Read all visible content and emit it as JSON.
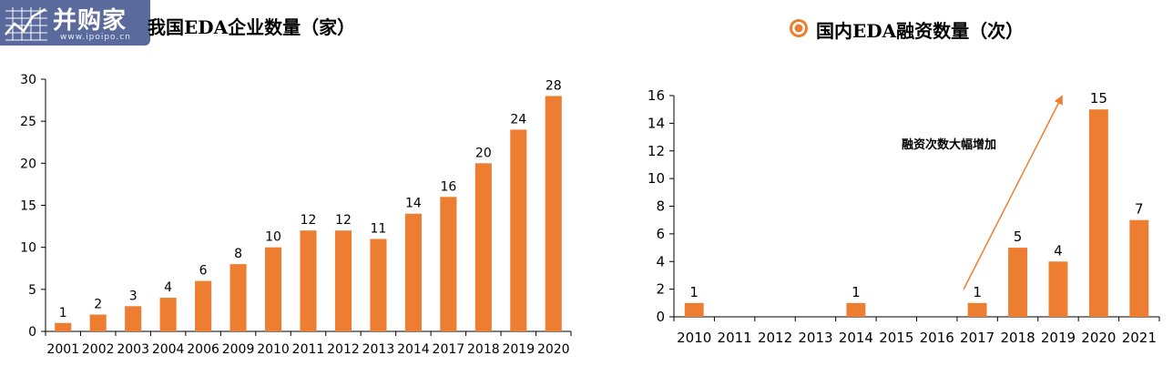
{
  "logo": {
    "main_text": "并购家",
    "sub_text": "www.ipoipo.cn"
  },
  "left_title": "我国EDA企业数量（家）",
  "right_title": "国内EDA融资数量（次）",
  "annotation": "融资次数大幅增加",
  "colors": {
    "bar": "#ED7D31",
    "logo_bg": "#5a6a9c",
    "arrow": "#ED7D31"
  },
  "icons": {
    "logo": "chart-grid-logo-icon",
    "title_marker": "target-icon"
  },
  "chart_data": [
    {
      "type": "bar",
      "categories": [
        "2001",
        "2002",
        "2003",
        "2004",
        "2006",
        "2009",
        "2010",
        "2011",
        "2012",
        "2013",
        "2014",
        "2017",
        "2018",
        "2019",
        "2020"
      ],
      "values": [
        1,
        2,
        3,
        4,
        6,
        8,
        10,
        12,
        12,
        11,
        14,
        16,
        20,
        24,
        28
      ],
      "title": "我国EDA企业数量（家）",
      "ylim": [
        0,
        30
      ],
      "yticks": [
        0,
        5,
        10,
        15,
        20,
        25,
        30
      ],
      "data_labels": true,
      "grid": false
    },
    {
      "type": "bar",
      "categories": [
        "2010",
        "2011",
        "2012",
        "2013",
        "2014",
        "2015",
        "2016",
        "2017",
        "2018",
        "2019",
        "2020",
        "2021"
      ],
      "values": [
        1,
        null,
        null,
        null,
        1,
        null,
        null,
        1,
        5,
        4,
        15,
        7
      ],
      "title": "国内EDA融资数量（次）",
      "ylim": [
        0,
        16
      ],
      "yticks": [
        0,
        2,
        4,
        6,
        8,
        10,
        12,
        14,
        16
      ],
      "data_labels": true,
      "grid": false,
      "annotation": "融资次数大幅增加"
    }
  ]
}
